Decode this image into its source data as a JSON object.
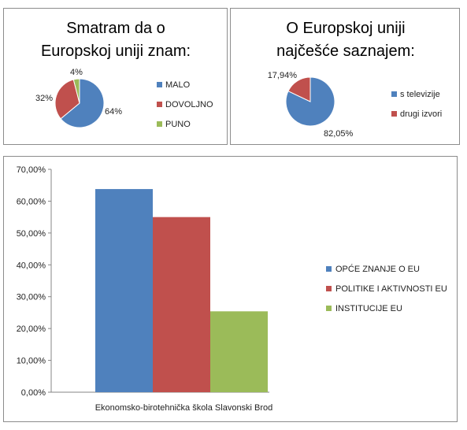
{
  "chart_data": [
    {
      "type": "pie",
      "title_lines": [
        "Smatram da o",
        "Europskoj uniji znam:"
      ],
      "categories": [
        "MALO",
        "DOVOLJNO",
        "PUNO"
      ],
      "values": [
        64,
        32,
        4
      ],
      "data_labels": [
        "64%",
        "32%",
        "4%"
      ],
      "colors": [
        "#4f81bd",
        "#c0504d",
        "#9bbb59"
      ],
      "legend": "right"
    },
    {
      "type": "pie",
      "title_lines": [
        "O Europskoj uniji",
        "najčešće saznajem:"
      ],
      "categories": [
        "s televizije",
        "drugi izvori"
      ],
      "values": [
        82.05,
        17.94
      ],
      "data_labels": [
        "82,05%",
        "17,94%"
      ],
      "colors": [
        "#4f81bd",
        "#c0504d"
      ],
      "legend": "right"
    },
    {
      "type": "bar",
      "categories": [
        "Ekonomsko-birotehnička škola Slavonski Brod"
      ],
      "series": [
        {
          "name": "OPĆE ZNANJE O EU",
          "values": [
            63.8
          ],
          "color": "#4f81bd"
        },
        {
          "name": "POLITIKE I AKTIVNOSTI EU",
          "values": [
            55.0
          ],
          "color": "#c0504d"
        },
        {
          "name": "INSTITUCIJE EU",
          "values": [
            25.4
          ],
          "color": "#9bbb59"
        }
      ],
      "yticks": [
        "0,00%",
        "10,00%",
        "20,00%",
        "30,00%",
        "40,00%",
        "50,00%",
        "60,00%",
        "70,00%"
      ],
      "ylim": [
        0,
        70
      ],
      "grid": false,
      "legend": "right"
    }
  ]
}
